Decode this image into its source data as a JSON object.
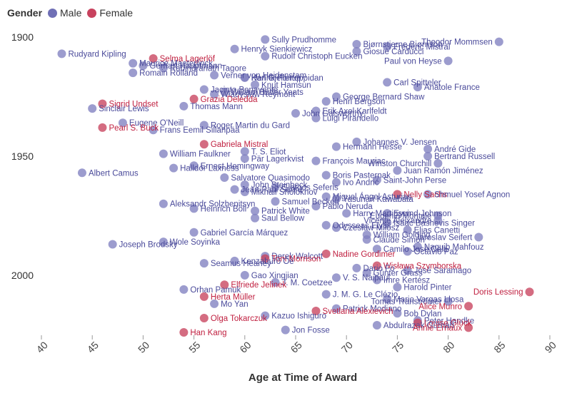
{
  "legend": {
    "title": "Gender",
    "male": "Male",
    "female": "Female"
  },
  "colors": {
    "male": "#8080c0",
    "female": "#c8425e",
    "male_text": "#4a4a9a",
    "female_text": "#c02040"
  },
  "chart_data": {
    "type": "scatter",
    "xlabel": "Age at Time of Award",
    "ylabel": "",
    "xlim": [
      40,
      90
    ],
    "ylim": [
      2023,
      1900
    ],
    "xticks": [
      40,
      45,
      50,
      55,
      60,
      65,
      70,
      75,
      80,
      85,
      90
    ],
    "yticks": [
      1900,
      1950,
      2000
    ],
    "grid": false,
    "legend_position": "top-left",
    "points": [
      {
        "name": "Sully Prudhomme",
        "age": 62,
        "year": 1901,
        "gender": "male"
      },
      {
        "name": "Theodor Mommsen",
        "age": 85,
        "year": 1902,
        "gender": "male"
      },
      {
        "name": "Bjørnstjerne Bjørnson",
        "age": 71,
        "year": 1903,
        "gender": "male"
      },
      {
        "name": "Frédéric Mistral",
        "age": 74,
        "year": 1904,
        "gender": "male"
      },
      {
        "name": "Henryk Sienkiewicz",
        "age": 59,
        "year": 1905,
        "gender": "male"
      },
      {
        "name": "Giosuè Carducci",
        "age": 71,
        "year": 1906,
        "gender": "male"
      },
      {
        "name": "Rudyard Kipling",
        "age": 42,
        "year": 1907,
        "gender": "male"
      },
      {
        "name": "Rudolf Christoph Eucken",
        "age": 62,
        "year": 1908,
        "gender": "male"
      },
      {
        "name": "Selma Lagerlöf",
        "age": 51,
        "year": 1909,
        "gender": "female"
      },
      {
        "name": "Paul von Heyse",
        "age": 80,
        "year": 1910,
        "gender": "male"
      },
      {
        "name": "Maurice Maeterlinck",
        "age": 49,
        "year": 1911,
        "gender": "male"
      },
      {
        "name": "Gerhart Hauptmann",
        "age": 50,
        "year": 1912,
        "gender": "male"
      },
      {
        "name": "Rabindranath Tagore",
        "age": 52,
        "year": 1913,
        "gender": "male"
      },
      {
        "name": "Romain Rolland",
        "age": 49,
        "year": 1915,
        "gender": "male"
      },
      {
        "name": "Verner von Heidenstam",
        "age": 57,
        "year": 1916,
        "gender": "male"
      },
      {
        "name": "Karl Gjellerup",
        "age": 60,
        "year": 1917,
        "gender": "male"
      },
      {
        "name": "Henrik Pontoppidan",
        "age": 60,
        "year": 1917,
        "gender": "male"
      },
      {
        "name": "Carl Spitteler",
        "age": 74,
        "year": 1919,
        "gender": "male"
      },
      {
        "name": "Knut Hamsun",
        "age": 61,
        "year": 1920,
        "gender": "male"
      },
      {
        "name": "Anatole France",
        "age": 77,
        "year": 1921,
        "gender": "male"
      },
      {
        "name": "Jacinto Benavente",
        "age": 56,
        "year": 1922,
        "gender": "male"
      },
      {
        "name": "William Butler Yeats",
        "age": 58,
        "year": 1923,
        "gender": "male"
      },
      {
        "name": "Władysław Reymont",
        "age": 57,
        "year": 1924,
        "gender": "male"
      },
      {
        "name": "George Bernard Shaw",
        "age": 69,
        "year": 1925,
        "gender": "male"
      },
      {
        "name": "Grazia Deledda",
        "age": 55,
        "year": 1926,
        "gender": "female"
      },
      {
        "name": "Henri Bergson",
        "age": 68,
        "year": 1927,
        "gender": "male"
      },
      {
        "name": "Sigrid Undset",
        "age": 46,
        "year": 1928,
        "gender": "female"
      },
      {
        "name": "Thomas Mann",
        "age": 54,
        "year": 1929,
        "gender": "male"
      },
      {
        "name": "Sinclair Lewis",
        "age": 45,
        "year": 1930,
        "gender": "male"
      },
      {
        "name": "Erik Axel Karlfeldt",
        "age": 67,
        "year": 1931,
        "gender": "male"
      },
      {
        "name": "John Galsworthy",
        "age": 65,
        "year": 1932,
        "gender": "male"
      },
      {
        "name": "Luigi Pirandello",
        "age": 67,
        "year": 1934,
        "gender": "male"
      },
      {
        "name": "Eugene O'Neill",
        "age": 48,
        "year": 1936,
        "gender": "male"
      },
      {
        "name": "Roger Martin du Gard",
        "age": 56,
        "year": 1937,
        "gender": "male"
      },
      {
        "name": "Pearl S. Buck",
        "age": 46,
        "year": 1938,
        "gender": "female"
      },
      {
        "name": "Frans Eemil Sillanpää",
        "age": 51,
        "year": 1939,
        "gender": "male"
      },
      {
        "name": "Johannes V. Jensen",
        "age": 71,
        "year": 1944,
        "gender": "male"
      },
      {
        "name": "Gabriela Mistral",
        "age": 56,
        "year": 1945,
        "gender": "female"
      },
      {
        "name": "Hermann Hesse",
        "age": 69,
        "year": 1946,
        "gender": "male"
      },
      {
        "name": "André Gide",
        "age": 78,
        "year": 1947,
        "gender": "male"
      },
      {
        "name": "T. S. Eliot",
        "age": 60,
        "year": 1948,
        "gender": "male"
      },
      {
        "name": "William Faulkner",
        "age": 52,
        "year": 1949,
        "gender": "male"
      },
      {
        "name": "Bertrand Russell",
        "age": 78,
        "year": 1950,
        "gender": "male"
      },
      {
        "name": "Pär Lagerkvist",
        "age": 60,
        "year": 1951,
        "gender": "male"
      },
      {
        "name": "François Mauriac",
        "age": 67,
        "year": 1952,
        "gender": "male"
      },
      {
        "name": "Winston Churchill",
        "age": 79,
        "year": 1953,
        "gender": "male"
      },
      {
        "name": "Ernest Hemingway",
        "age": 55,
        "year": 1954,
        "gender": "male"
      },
      {
        "name": "Halldór Laxness",
        "age": 53,
        "year": 1955,
        "gender": "male"
      },
      {
        "name": "Juan Ramón Jiménez",
        "age": 75,
        "year": 1956,
        "gender": "male"
      },
      {
        "name": "Albert Camus",
        "age": 44,
        "year": 1957,
        "gender": "male"
      },
      {
        "name": "Boris Pasternak",
        "age": 68,
        "year": 1958,
        "gender": "male"
      },
      {
        "name": "Salvatore Quasimodo",
        "age": 58,
        "year": 1959,
        "gender": "male"
      },
      {
        "name": "Saint-John Perse",
        "age": 73,
        "year": 1960,
        "gender": "male"
      },
      {
        "name": "Ivo Andrić",
        "age": 69,
        "year": 1961,
        "gender": "male"
      },
      {
        "name": "John Steinbeck",
        "age": 60,
        "year": 1962,
        "gender": "male"
      },
      {
        "name": "Giorgos Seferis",
        "age": 63,
        "year": 1963,
        "gender": "male"
      },
      {
        "name": "Jean-Paul Sartre",
        "age": 59,
        "year": 1964,
        "gender": "male"
      },
      {
        "name": "Mikhail Sholokhov",
        "age": 60,
        "year": 1965,
        "gender": "male"
      },
      {
        "name": "Nelly Sachs",
        "age": 75,
        "year": 1966,
        "gender": "female"
      },
      {
        "name": "Shmuel Yosef Agnon",
        "age": 78,
        "year": 1966,
        "gender": "male"
      },
      {
        "name": "Miguel Ángel Asturias",
        "age": 68,
        "year": 1967,
        "gender": "male"
      },
      {
        "name": "Yasunari Kawabata",
        "age": 69,
        "year": 1968,
        "gender": "male"
      },
      {
        "name": "Samuel Beckett",
        "age": 63,
        "year": 1969,
        "gender": "male"
      },
      {
        "name": "Aleksandr Solzhenitsyn",
        "age": 52,
        "year": 1970,
        "gender": "male"
      },
      {
        "name": "Pablo Neruda",
        "age": 67,
        "year": 1971,
        "gender": "male"
      },
      {
        "name": "Heinrich Böll",
        "age": 55,
        "year": 1972,
        "gender": "male"
      },
      {
        "name": "Patrick White",
        "age": 61,
        "year": 1973,
        "gender": "male"
      },
      {
        "name": "Eyvind Johnson",
        "age": 74,
        "year": 1974,
        "gender": "male"
      },
      {
        "name": "Harry Martinson",
        "age": 70,
        "year": 1974,
        "gender": "male"
      },
      {
        "name": "Eugenio Montale",
        "age": 79,
        "year": 1975,
        "gender": "male"
      },
      {
        "name": "Saul Bellow",
        "age": 61,
        "year": 1976,
        "gender": "male"
      },
      {
        "name": "Vicente Aleixandre",
        "age": 79,
        "year": 1977,
        "gender": "male"
      },
      {
        "name": "Isaac Bashevis Singer",
        "age": 74,
        "year": 1978,
        "gender": "male"
      },
      {
        "name": "Odysseas Elytis",
        "age": 68,
        "year": 1979,
        "gender": "male"
      },
      {
        "name": "Czesław Miłosz",
        "age": 69,
        "year": 1980,
        "gender": "male"
      },
      {
        "name": "Elias Canetti",
        "age": 76,
        "year": 1981,
        "gender": "male"
      },
      {
        "name": "Gabriel García Márquez",
        "age": 55,
        "year": 1982,
        "gender": "male"
      },
      {
        "name": "William Golding",
        "age": 72,
        "year": 1983,
        "gender": "male"
      },
      {
        "name": "Jaroslav Seifert",
        "age": 83,
        "year": 1984,
        "gender": "male"
      },
      {
        "name": "Claude Simon",
        "age": 72,
        "year": 1985,
        "gender": "male"
      },
      {
        "name": "Wole Soyinka",
        "age": 52,
        "year": 1986,
        "gender": "male"
      },
      {
        "name": "Joseph Brodsky",
        "age": 47,
        "year": 1987,
        "gender": "male"
      },
      {
        "name": "Naguib Mahfouz",
        "age": 77,
        "year": 1988,
        "gender": "male"
      },
      {
        "name": "Camilo José Cela",
        "age": 73,
        "year": 1989,
        "gender": "male"
      },
      {
        "name": "Octavio Paz",
        "age": 76,
        "year": 1990,
        "gender": "male"
      },
      {
        "name": "Nadine Gordimer",
        "age": 68,
        "year": 1991,
        "gender": "female"
      },
      {
        "name": "Derek Walcott",
        "age": 62,
        "year": 1992,
        "gender": "male"
      },
      {
        "name": "Toni Morrison",
        "age": 62,
        "year": 1993,
        "gender": "female"
      },
      {
        "name": "Kenzaburō Ōe",
        "age": 59,
        "year": 1994,
        "gender": "male"
      },
      {
        "name": "Seamus Heaney",
        "age": 56,
        "year": 1995,
        "gender": "male"
      },
      {
        "name": "Wisława Szymborska",
        "age": 73,
        "year": 1996,
        "gender": "female"
      },
      {
        "name": "Dario Fo",
        "age": 71,
        "year": 1997,
        "gender": "male"
      },
      {
        "name": "José Saramago",
        "age": 76,
        "year": 1998,
        "gender": "male"
      },
      {
        "name": "Günter Grass",
        "age": 72,
        "year": 1999,
        "gender": "male"
      },
      {
        "name": "Gao Xingjian",
        "age": 60,
        "year": 2000,
        "gender": "male"
      },
      {
        "name": "V. S. Naipaul",
        "age": 69,
        "year": 2001,
        "gender": "male"
      },
      {
        "name": "Imre Kertész",
        "age": 73,
        "year": 2002,
        "gender": "male"
      },
      {
        "name": "J. M. Coetzee",
        "age": 63,
        "year": 2003,
        "gender": "male"
      },
      {
        "name": "Elfriede Jelinek",
        "age": 58,
        "year": 2004,
        "gender": "female"
      },
      {
        "name": "Harold Pinter",
        "age": 75,
        "year": 2005,
        "gender": "male"
      },
      {
        "name": "Orhan Pamuk",
        "age": 54,
        "year": 2006,
        "gender": "male"
      },
      {
        "name": "Doris Lessing",
        "age": 88,
        "year": 2007,
        "gender": "female"
      },
      {
        "name": "J. M. G. Le Clézio",
        "age": 68,
        "year": 2008,
        "gender": "male"
      },
      {
        "name": "Herta Müller",
        "age": 56,
        "year": 2009,
        "gender": "female"
      },
      {
        "name": "Mario Vargas Llosa",
        "age": 74,
        "year": 2010,
        "gender": "male"
      },
      {
        "name": "Tomas Tranströmer",
        "age": 80,
        "year": 2011,
        "gender": "male"
      },
      {
        "name": "Mo Yan",
        "age": 57,
        "year": 2012,
        "gender": "male"
      },
      {
        "name": "Alice Munro",
        "age": 82,
        "year": 2013,
        "gender": "female"
      },
      {
        "name": "Patrick Modiano",
        "age": 69,
        "year": 2014,
        "gender": "male"
      },
      {
        "name": "Svetlana Alexievich",
        "age": 67,
        "year": 2015,
        "gender": "female"
      },
      {
        "name": "Bob Dylan",
        "age": 75,
        "year": 2016,
        "gender": "male"
      },
      {
        "name": "Kazuo Ishiguro",
        "age": 62,
        "year": 2017,
        "gender": "male"
      },
      {
        "name": "Olga Tokarczuk",
        "age": 56,
        "year": 2018,
        "gender": "female"
      },
      {
        "name": "Peter Handke",
        "age": 77,
        "year": 2019,
        "gender": "male"
      },
      {
        "name": "Louise Glück",
        "age": 77,
        "year": 2020,
        "gender": "female"
      },
      {
        "name": "Abdulrazak Gurnah",
        "age": 73,
        "year": 2021,
        "gender": "male"
      },
      {
        "name": "Annie Ernaux",
        "age": 82,
        "year": 2022,
        "gender": "female"
      },
      {
        "name": "Jon Fosse",
        "age": 64,
        "year": 2023,
        "gender": "male"
      },
      {
        "name": "Han Kang",
        "age": 54,
        "year": 2024,
        "gender": "female"
      }
    ]
  }
}
